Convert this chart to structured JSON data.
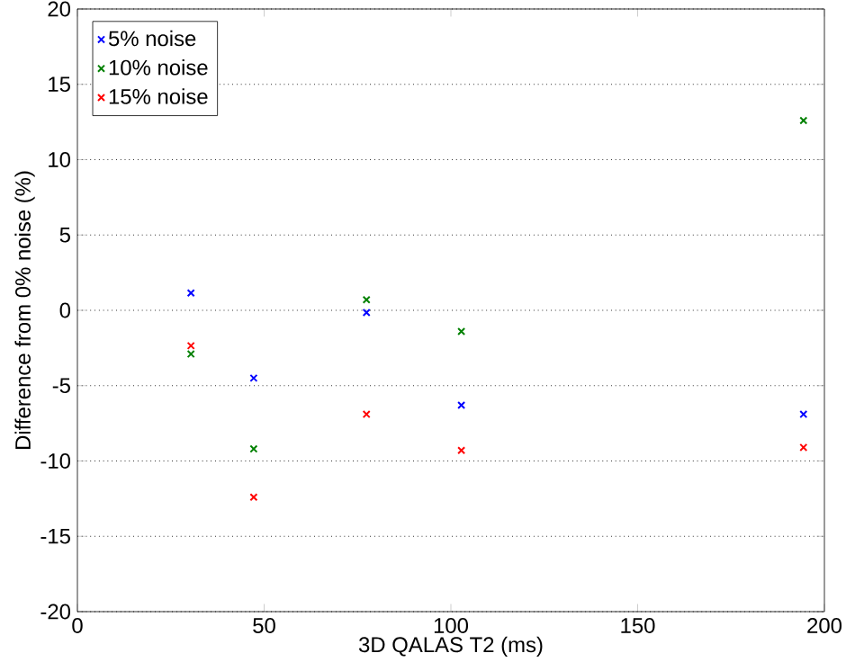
{
  "chart_data": {
    "type": "scatter",
    "xlabel": "3D QALAS T2 (ms)",
    "ylabel": "Difference from 0% noise (%)",
    "xlim": [
      0,
      200
    ],
    "ylim": [
      -20,
      20
    ],
    "xticks": [
      0,
      50,
      100,
      150,
      200
    ],
    "yticks": [
      -20,
      -15,
      -10,
      -5,
      0,
      5,
      10,
      15,
      20
    ],
    "grid": "y",
    "legend": "top left",
    "marker": "cross",
    "x": [
      30.4,
      47.2,
      77.4,
      102.8,
      194.4
    ],
    "series": [
      {
        "name": "5% noise",
        "color": "#0000ff",
        "values": [
          1.15,
          -4.5,
          -0.15,
          -6.3,
          -6.9
        ]
      },
      {
        "name": "10% noise",
        "color": "#008000",
        "values": [
          -2.9,
          -9.2,
          0.7,
          -1.4,
          12.6
        ]
      },
      {
        "name": "15% noise",
        "color": "#ff0000",
        "values": [
          -2.35,
          -12.4,
          -6.9,
          -9.3,
          -9.1
        ]
      }
    ]
  }
}
